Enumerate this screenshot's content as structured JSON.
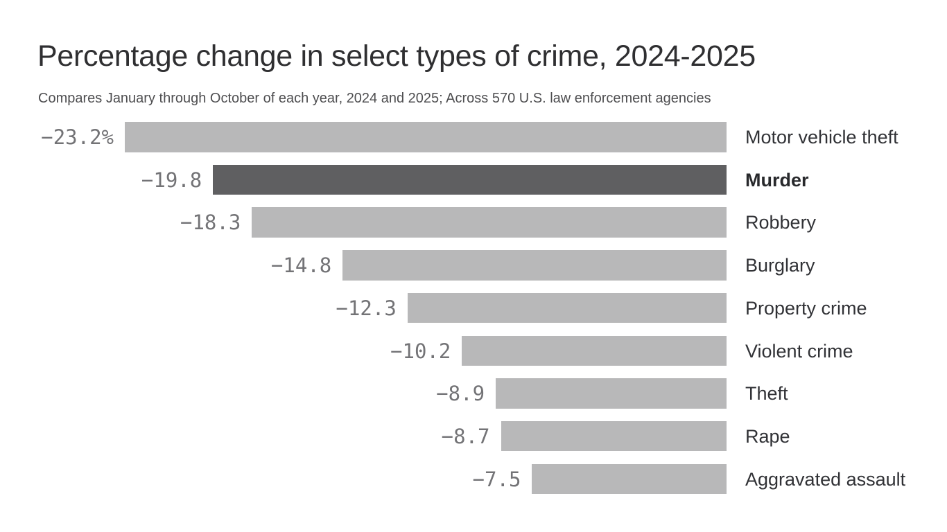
{
  "page": {
    "background": "#ffffff"
  },
  "header": {
    "title": "Percentage change in select types of crime, 2024-2025",
    "subtitle": "Compares January through October of each year, 2024 and 2025; Across 570 U.S. law enforcement agencies"
  },
  "chart_data": {
    "type": "bar",
    "orientation": "horizontal",
    "title": "Percentage change in select types of crime, 2024-2025",
    "subtitle": "Compares January through October of each year, 2024 and 2025; Across 570 U.S. law enforcement agencies",
    "xlabel": "",
    "ylabel": "",
    "axis_visible": false,
    "grid": false,
    "legend": "none",
    "value_range": [
      -23.2,
      0
    ],
    "categories": [
      "Motor vehicle theft",
      "Murder",
      "Robbery",
      "Burglary",
      "Property crime",
      "Violent crime",
      "Theft",
      "Rape",
      "Aggravated assault"
    ],
    "values": [
      -23.2,
      -19.8,
      -18.3,
      -14.8,
      -12.3,
      -10.2,
      -8.9,
      -8.7,
      -7.5
    ],
    "value_labels": [
      "−23.2%",
      "−19.8",
      "−18.3",
      "−14.8",
      "−12.3",
      "−10.2",
      "−8.9",
      "−8.7",
      "−7.5"
    ],
    "highlighted_category": "Murder",
    "colors": {
      "bar": "#b8b8b9",
      "highlight_bar": "#5f5f61",
      "value_text": "#737376",
      "category_text": "#313236",
      "title_text": "#2f2f31",
      "subtitle_text": "#4e4e50"
    }
  }
}
